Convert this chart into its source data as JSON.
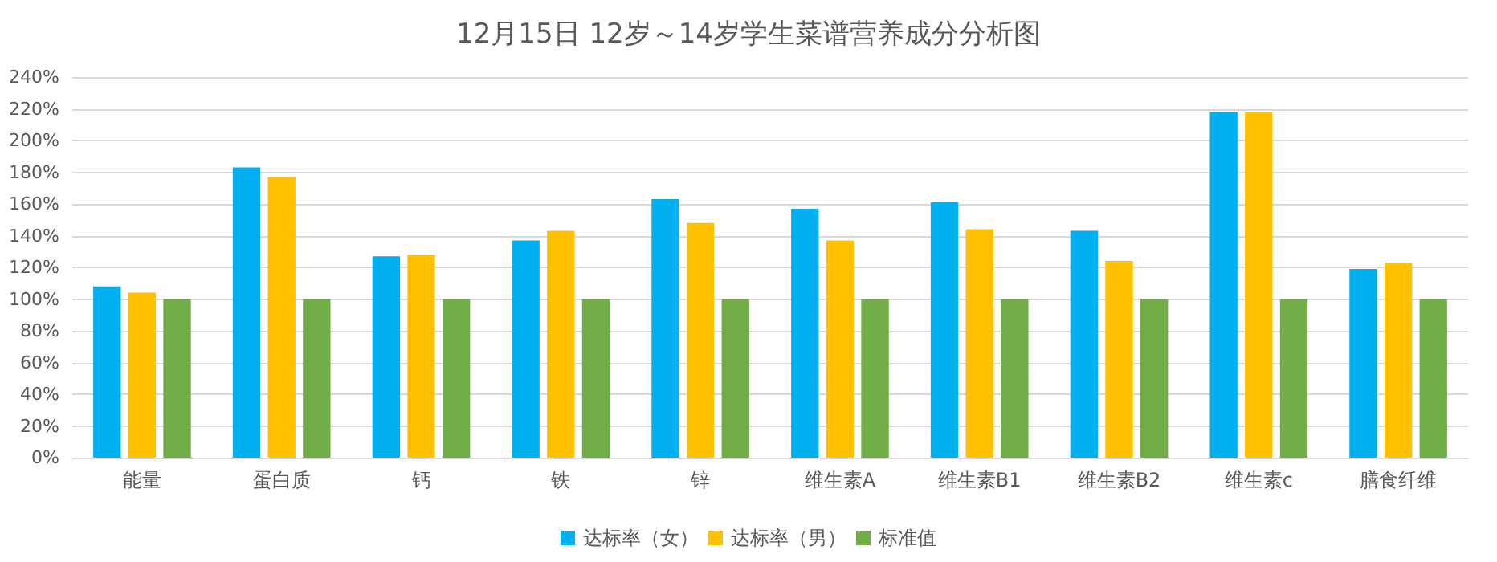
{
  "chart_data": {
    "type": "bar",
    "title": "12月15日 12岁～14岁学生菜谱营养成分分析图",
    "categories": [
      "能量",
      "蛋白质",
      "钙",
      "铁",
      "锌",
      "维生素A",
      "维生素B1",
      "维生素B2",
      "维生素c",
      "膳食纤维"
    ],
    "series": [
      {
        "name": "达标率（女）",
        "color": "#00b0f0",
        "values": [
          108,
          183,
          127,
          137,
          163,
          157,
          161,
          143,
          218,
          119
        ]
      },
      {
        "name": "达标率（男）",
        "color": "#ffc000",
        "values": [
          104,
          177,
          128,
          143,
          148,
          137,
          144,
          124,
          218,
          123
        ]
      },
      {
        "name": "标准值",
        "color": "#70ad47",
        "values": [
          100,
          100,
          100,
          100,
          100,
          100,
          100,
          100,
          100,
          100
        ]
      }
    ],
    "ylim": [
      0,
      240
    ],
    "yticks": [
      {
        "value": 0,
        "label": "0%"
      },
      {
        "value": 20,
        "label": "20%"
      },
      {
        "value": 40,
        "label": "40%"
      },
      {
        "value": 60,
        "label": "60%"
      },
      {
        "value": 80,
        "label": "80%"
      },
      {
        "value": 100,
        "label": "100%"
      },
      {
        "value": 120,
        "label": "120%"
      },
      {
        "value": 140,
        "label": "140%"
      },
      {
        "value": 160,
        "label": "160%"
      },
      {
        "value": 180,
        "label": "180%"
      },
      {
        "value": 200,
        "label": "200%"
      },
      {
        "value": 220,
        "label": "220%"
      },
      {
        "value": 240,
        "label": "240%"
      }
    ],
    "grid": "y",
    "legend": "bottom"
  }
}
